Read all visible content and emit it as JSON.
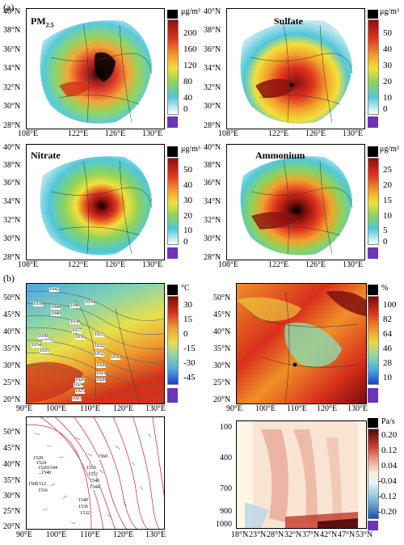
{
  "figure": {
    "label_a": "(a)",
    "label_b": "(b)",
    "tick_values": {
      "lat_a": [
        "40°N",
        "38°N",
        "36°N",
        "34°N",
        "32°N",
        "30°N",
        "28°N"
      ],
      "lon_a": [
        "108°E",
        "122°E",
        "126°E",
        "130°E"
      ],
      "lat_b": [
        "50°N",
        "45°N",
        "40°N",
        "35°N",
        "30°N",
        "25°N",
        "20°N"
      ],
      "lon_b": [
        "90°E",
        "100°E",
        "110°E",
        "120°E",
        "130°E"
      ],
      "pressure": [
        "100",
        "400",
        "700",
        "900",
        "1000"
      ],
      "lat_x": [
        "18°N",
        "23°N",
        "28°N",
        "32°N",
        "37°N",
        "42°N",
        "47°N",
        "53°N"
      ]
    }
  },
  "panels_a": [
    {
      "title": "PM",
      "title_sub": "2.5",
      "unit": "μg/m³",
      "ticks": [
        "200",
        "160",
        "120",
        "80",
        "40",
        "0"
      ]
    },
    {
      "title": "Sulfate",
      "title_sub": "",
      "unit": "μg/m³",
      "ticks": [
        "50",
        "40",
        "30",
        "20",
        "10",
        "0"
      ]
    },
    {
      "title": "Nitrate",
      "title_sub": "",
      "unit": "μg/m³",
      "ticks": [
        "50",
        "40",
        "30",
        "20",
        "10",
        "0"
      ]
    },
    {
      "title": "Ammonium",
      "title_sub": "",
      "unit": "μg/m³",
      "ticks": [
        "25",
        "20",
        "15",
        "10",
        "5",
        "0"
      ]
    }
  ],
  "panels_b": [
    {
      "unit": "°C",
      "ticks": [
        "30",
        "15",
        "0",
        "-15",
        "-30",
        "-45"
      ]
    },
    {
      "unit": "%",
      "ticks": [
        "100",
        "82",
        "64",
        "46",
        "28",
        "10"
      ]
    },
    {
      "unit": "",
      "ticks": []
    },
    {
      "unit": "Pa/s",
      "ticks": [
        "0.20",
        "0.12",
        "0.04",
        "-0.04",
        "-0.12",
        "-0.20"
      ]
    }
  ],
  "isobars": {
    "slp": [
      "1042",
      "1039",
      "1040",
      "1039",
      "1044",
      "1040",
      "1038",
      "1037",
      "1036",
      "1034",
      "1032",
      "1030",
      "1033",
      "1035",
      "1032",
      "1028",
      "1026",
      "1024",
      "1025",
      "1023",
      "1032",
      "1030",
      "1024",
      "1020"
    ],
    "geopotential": [
      "1560",
      "1556",
      "1552",
      "1548",
      "1544",
      "1540",
      "1536",
      "1532",
      "1528",
      "1524",
      "1520",
      "1516",
      "1512",
      "1508",
      "1544",
      "1548"
    ]
  },
  "colors": {
    "cb_aerosol": [
      "#ffffff",
      "#bfe7f2",
      "#4fc7d8",
      "#8ed35a",
      "#f2e03a",
      "#f2a12c",
      "#e0341f",
      "#8c0f0f",
      "#000000"
    ],
    "cb_temp": [
      "#1f3cc8",
      "#4da6e0",
      "#86d3b0",
      "#e8e04a",
      "#f0a030",
      "#d23218",
      "#7a0a0a",
      "#000000"
    ],
    "cb_rh": [
      "#1f3cc8",
      "#4aa8e6",
      "#8fd6a6",
      "#ecd844",
      "#f09028",
      "#d8301c",
      "#7a0a0a",
      "#000000"
    ],
    "cb_omega": [
      "#1f4fa8",
      "#7fb8dc",
      "#e8f3f8",
      "#fbeede",
      "#f0a890",
      "#c6382a",
      "#4a0a0a",
      "#000000"
    ],
    "purple": "#6b35b8"
  }
}
